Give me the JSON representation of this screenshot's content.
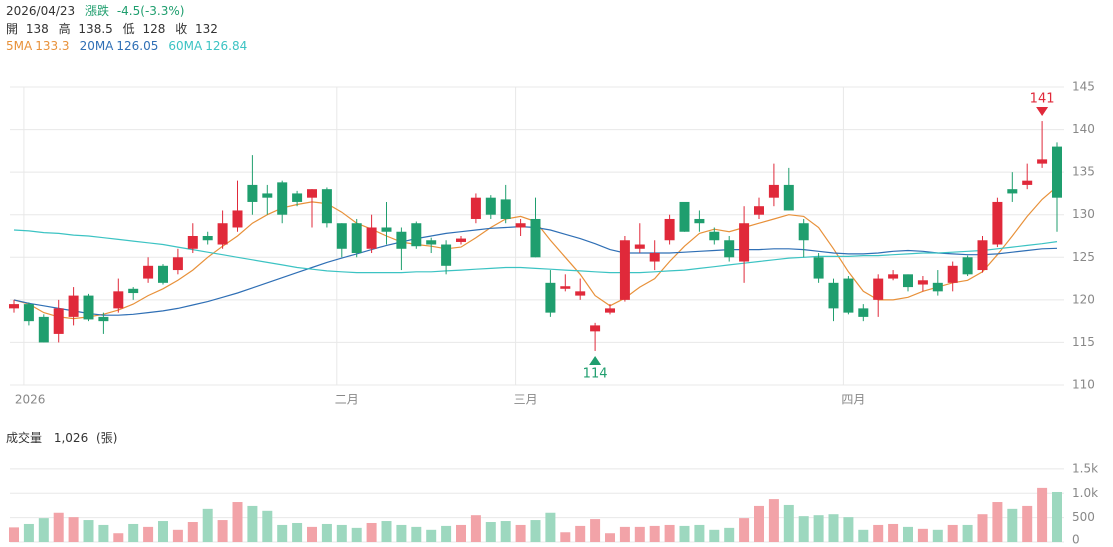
{
  "header": {
    "date": "2026/04/23",
    "change_label": "漲跌",
    "change": "-4.5(-3.3%)",
    "open_label": "開",
    "high_label": "高",
    "low_label": "低",
    "close_label": "收"
  },
  "chart_data": [
    {
      "type": "candlestick",
      "categories": [
        null,
        "2026",
        null,
        null,
        null,
        null,
        null,
        null,
        null,
        null,
        null,
        null,
        null,
        null,
        null,
        null,
        null,
        null,
        null,
        null,
        null,
        null,
        "二月",
        null,
        null,
        null,
        null,
        null,
        null,
        null,
        null,
        null,
        null,
        null,
        "三月",
        null,
        null,
        null,
        null,
        null,
        null,
        null,
        null,
        null,
        null,
        null,
        null,
        null,
        null,
        null,
        null,
        null,
        null,
        null,
        null,
        null,
        "四月",
        null,
        null,
        null,
        null,
        null,
        null,
        null,
        null,
        null,
        null,
        null,
        null,
        null,
        null
      ],
      "open": [
        119,
        119.5,
        118,
        116,
        118,
        120.5,
        118,
        119,
        121.3,
        122.5,
        124,
        123.5,
        126,
        127.5,
        126.5,
        128.5,
        133.5,
        132.5,
        133.8,
        132.5,
        132,
        133,
        129,
        129,
        126,
        128.5,
        128,
        129,
        127,
        126.5,
        126.8,
        129.5,
        132,
        131.8,
        128.5,
        129.5,
        122,
        121.3,
        120.5,
        116.3,
        118.5,
        120,
        126,
        124.5,
        127,
        131.5,
        129.5,
        128,
        127,
        124.5,
        130,
        132,
        133.5,
        129,
        125,
        122,
        122.5,
        119,
        120,
        122.5,
        123,
        121.8,
        122,
        122,
        125,
        123.5,
        126.5,
        133,
        133.5,
        136,
        138
      ],
      "high": [
        120,
        119.7,
        118.3,
        120,
        121.5,
        120.7,
        118.5,
        122.5,
        121.5,
        125,
        124.2,
        126,
        129,
        128,
        130.5,
        134,
        137,
        133.5,
        134,
        132.8,
        133,
        133.2,
        129,
        129.5,
        130,
        131.5,
        128.5,
        129.2,
        127.3,
        127,
        127.5,
        132.5,
        132.3,
        133.5,
        129.5,
        132,
        123.5,
        123,
        122.5,
        117.3,
        119.5,
        127.5,
        129,
        127,
        130,
        131.5,
        130.5,
        128.5,
        127.5,
        131,
        132,
        136,
        135.5,
        129.5,
        125.5,
        122.5,
        122.8,
        119.5,
        123,
        123.5,
        123,
        122.8,
        123.5,
        124.5,
        125.2,
        127.5,
        132,
        135,
        136,
        141,
        138.5
      ],
      "low": [
        118.5,
        117,
        115,
        115,
        117,
        117.5,
        116,
        118.5,
        120,
        122,
        121.8,
        123,
        125.5,
        126.5,
        126,
        128,
        130,
        130,
        129,
        131,
        128.5,
        128.5,
        125,
        125,
        125.5,
        126.5,
        123.5,
        126,
        125.5,
        123,
        126.5,
        129,
        129.5,
        129,
        127.5,
        125,
        118,
        121,
        120,
        114,
        118.3,
        119.8,
        125.5,
        123.5,
        126.5,
        128,
        128,
        126.5,
        124.5,
        122,
        129.5,
        131,
        130.5,
        125,
        122,
        117.5,
        118.3,
        117.5,
        118,
        122.3,
        121,
        121,
        120.5,
        121,
        122.8,
        123.2,
        126.2,
        131.5,
        133,
        135.5,
        128
      ],
      "close": [
        119.5,
        117.5,
        115,
        119,
        120.5,
        117.7,
        117.5,
        121,
        120.8,
        124,
        122,
        125,
        127.5,
        127,
        129,
        130.5,
        131.5,
        132,
        130,
        131.5,
        133,
        129,
        126,
        125.5,
        128.5,
        128,
        126,
        126.3,
        126.5,
        124,
        127.2,
        132,
        130,
        129.5,
        129,
        125,
        118.5,
        121.6,
        121,
        117,
        119,
        127,
        126.5,
        125.5,
        129.5,
        128,
        129,
        127,
        125,
        129,
        131,
        133.5,
        130.5,
        127,
        122.5,
        119,
        118.5,
        118,
        122.5,
        123,
        121.5,
        122.3,
        121,
        124,
        123,
        127,
        131.5,
        132.5,
        134,
        136.5,
        132
      ],
      "up_color": "#e0293a",
      "down_color": "#1f9e6e",
      "series": [
        {
          "name": "5MA",
          "color": "#e8913a",
          "values": [
            120,
            119.5,
            118.5,
            118,
            117.8,
            118,
            118.3,
            118.8,
            119.5,
            120.5,
            121.3,
            122.3,
            123.5,
            125,
            126.3,
            127.5,
            129,
            130,
            130.8,
            131.2,
            131.5,
            131.3,
            130.3,
            129,
            128.3,
            127.5,
            126.8,
            126.5,
            126.3,
            126,
            126.2,
            127.3,
            128.5,
            129.5,
            129.8,
            129.2,
            127,
            125,
            123,
            120.5,
            119.3,
            120.2,
            121.5,
            122.5,
            124.5,
            126.3,
            127.8,
            128.3,
            128,
            128.5,
            129,
            129.5,
            130,
            129.8,
            128.5,
            126,
            123.3,
            121,
            120,
            120,
            120.3,
            121,
            121.5,
            122,
            122.3,
            123.3,
            125.3,
            127.5,
            129.8,
            131.8,
            133.3
          ]
        },
        {
          "name": "20MA",
          "color": "#2f6fb5",
          "values": [
            120,
            119.6,
            119.3,
            119,
            118.7,
            118.4,
            118.2,
            118.2,
            118.3,
            118.5,
            118.7,
            119,
            119.4,
            119.8,
            120.3,
            120.8,
            121.4,
            122,
            122.6,
            123.2,
            123.8,
            124.4,
            124.9,
            125.4,
            125.9,
            126.4,
            126.8,
            127.2,
            127.5,
            127.8,
            128,
            128.2,
            128.4,
            128.5,
            128.6,
            128.5,
            128.2,
            127.7,
            127.2,
            126.6,
            125.9,
            125.5,
            125.5,
            125.5,
            125.5,
            125.6,
            125.7,
            125.8,
            125.9,
            125.9,
            125.9,
            126,
            126,
            125.9,
            125.7,
            125.5,
            125.4,
            125.4,
            125.5,
            125.7,
            125.8,
            125.7,
            125.5,
            125.4,
            125.3,
            125.3,
            125.4,
            125.6,
            125.8,
            126,
            126.05
          ]
        },
        {
          "name": "60MA",
          "color": "#3cc3c3",
          "values": [
            128.2,
            128.1,
            127.9,
            127.8,
            127.6,
            127.5,
            127.3,
            127.1,
            126.9,
            126.7,
            126.5,
            126.2,
            125.9,
            125.6,
            125.3,
            125,
            124.7,
            124.4,
            124.1,
            123.8,
            123.6,
            123.4,
            123.3,
            123.2,
            123.2,
            123.2,
            123.2,
            123.3,
            123.3,
            123.4,
            123.5,
            123.6,
            123.7,
            123.8,
            123.8,
            123.7,
            123.6,
            123.5,
            123.4,
            123.3,
            123.2,
            123.2,
            123.2,
            123.3,
            123.4,
            123.5,
            123.7,
            123.9,
            124.1,
            124.3,
            124.5,
            124.7,
            124.9,
            125,
            125.1,
            125.1,
            125.1,
            125.2,
            125.2,
            125.3,
            125.4,
            125.5,
            125.5,
            125.6,
            125.7,
            125.8,
            126,
            126.2,
            126.4,
            126.6,
            126.84
          ]
        }
      ],
      "ylim": [
        110,
        145
      ],
      "yticks": [
        110,
        115,
        120,
        125,
        130,
        135,
        140,
        145
      ],
      "grid": true
    },
    {
      "type": "bar",
      "title": "成交量",
      "last_value_label": "1,026",
      "unit": "(張)",
      "values": [
        300,
        370,
        490,
        600,
        510,
        450,
        350,
        180,
        370,
        310,
        430,
        250,
        410,
        680,
        450,
        820,
        740,
        640,
        350,
        390,
        310,
        370,
        350,
        290,
        390,
        430,
        350,
        310,
        250,
        330,
        350,
        550,
        410,
        430,
        350,
        450,
        600,
        200,
        330,
        470,
        180,
        310,
        310,
        330,
        350,
        330,
        350,
        250,
        290,
        490,
        740,
        880,
        760,
        530,
        550,
        570,
        510,
        250,
        350,
        370,
        310,
        270,
        250,
        350,
        350,
        570,
        820,
        680,
        740,
        1110,
        1026
      ],
      "up_color": "#f2a3a8",
      "down_color": "#9dd8bf",
      "ylim": [
        0,
        1600
      ],
      "yticks": [
        0,
        500,
        {
          "value": 1000,
          "label": "1.0k"
        },
        {
          "value": 1500,
          "label": "1.5k"
        }
      ],
      "grid": true
    }
  ]
}
